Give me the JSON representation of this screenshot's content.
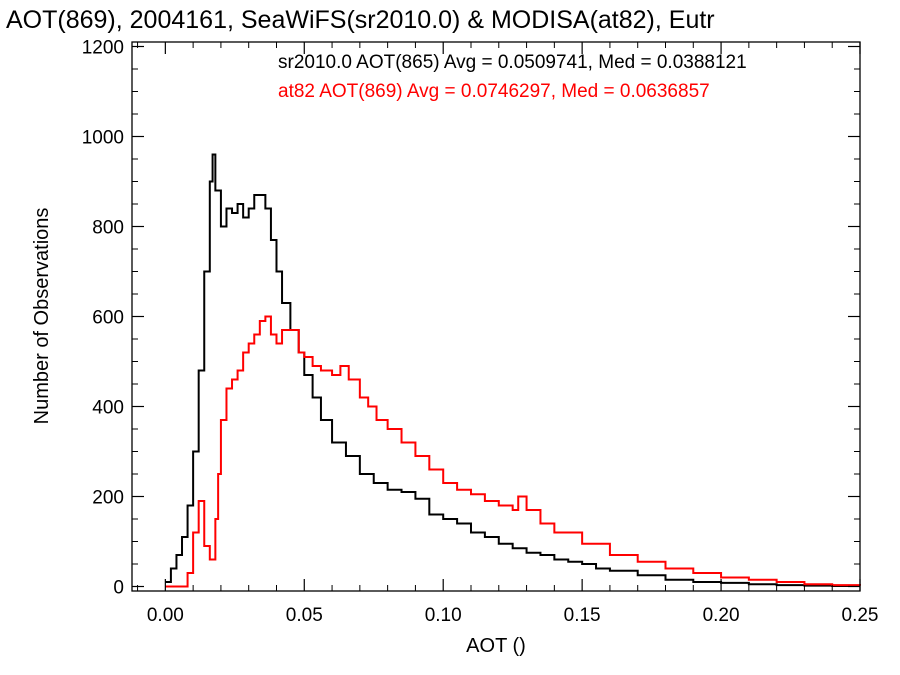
{
  "chart_data": {
    "type": "line",
    "title": "AOT(869), 2004161, SeaWiFS(sr2010.0) & MODISA(at82), Eutr",
    "xlabel": "AOT ()",
    "ylabel": "Number of Observations",
    "xlim": [
      -0.012,
      0.25
    ],
    "ylim": [
      -10,
      1210
    ],
    "xticks": [
      0.0,
      0.05,
      0.1,
      0.15,
      0.2,
      0.25
    ],
    "xtick_labels": [
      "0.00",
      "0.05",
      "0.10",
      "0.15",
      "0.20",
      "0.25"
    ],
    "yticks": [
      0,
      200,
      400,
      600,
      800,
      1000,
      1200
    ],
    "ytick_labels": [
      "0",
      "200",
      "400",
      "600",
      "800",
      "1000",
      "1200"
    ],
    "grid": false,
    "annotations": [
      {
        "text": "sr2010.0 AOT(865) Avg = 0.0509741, Med = 0.0388121",
        "color": "#000000"
      },
      {
        "text": "at82 AOT(869) Avg = 0.0746297, Med = 0.0636857",
        "color": "#ff0000"
      }
    ],
    "series": [
      {
        "color": "#000000",
        "step": true,
        "x": [
          0.0,
          0.002,
          0.004,
          0.006,
          0.008,
          0.01,
          0.012,
          0.014,
          0.016,
          0.017,
          0.018,
          0.02,
          0.022,
          0.024,
          0.026,
          0.028,
          0.03,
          0.032,
          0.034,
          0.036,
          0.038,
          0.04,
          0.042,
          0.045,
          0.048,
          0.05,
          0.053,
          0.056,
          0.06,
          0.065,
          0.07,
          0.075,
          0.08,
          0.085,
          0.09,
          0.095,
          0.1,
          0.105,
          0.11,
          0.115,
          0.12,
          0.125,
          0.13,
          0.135,
          0.14,
          0.145,
          0.15,
          0.155,
          0.16,
          0.17,
          0.18,
          0.19,
          0.2,
          0.21,
          0.22,
          0.23,
          0.24,
          0.25
        ],
        "y": [
          10,
          40,
          70,
          110,
          180,
          300,
          480,
          700,
          900,
          960,
          880,
          800,
          840,
          830,
          850,
          820,
          840,
          870,
          870,
          840,
          770,
          700,
          630,
          570,
          520,
          470,
          420,
          370,
          320,
          290,
          250,
          230,
          215,
          210,
          195,
          160,
          150,
          140,
          120,
          110,
          95,
          85,
          75,
          70,
          60,
          55,
          50,
          40,
          35,
          25,
          15,
          10,
          8,
          5,
          3,
          2,
          1,
          1
        ]
      },
      {
        "color": "#ff0000",
        "step": true,
        "x": [
          0.0,
          0.005,
          0.008,
          0.01,
          0.012,
          0.014,
          0.016,
          0.018,
          0.019,
          0.02,
          0.022,
          0.024,
          0.026,
          0.028,
          0.03,
          0.032,
          0.034,
          0.036,
          0.038,
          0.04,
          0.042,
          0.045,
          0.048,
          0.05,
          0.053,
          0.056,
          0.06,
          0.063,
          0.066,
          0.07,
          0.073,
          0.076,
          0.08,
          0.085,
          0.09,
          0.095,
          0.1,
          0.105,
          0.11,
          0.115,
          0.12,
          0.125,
          0.127,
          0.13,
          0.135,
          0.14,
          0.15,
          0.16,
          0.17,
          0.18,
          0.19,
          0.2,
          0.21,
          0.22,
          0.23,
          0.24,
          0.25
        ],
        "y": [
          0,
          0,
          30,
          120,
          190,
          90,
          60,
          150,
          250,
          370,
          440,
          460,
          480,
          520,
          540,
          560,
          590,
          600,
          560,
          540,
          570,
          570,
          520,
          510,
          490,
          480,
          470,
          490,
          460,
          420,
          400,
          370,
          350,
          320,
          290,
          260,
          230,
          215,
          205,
          190,
          180,
          170,
          200,
          170,
          140,
          120,
          95,
          70,
          55,
          40,
          30,
          20,
          15,
          10,
          5,
          3,
          2
        ]
      }
    ]
  }
}
